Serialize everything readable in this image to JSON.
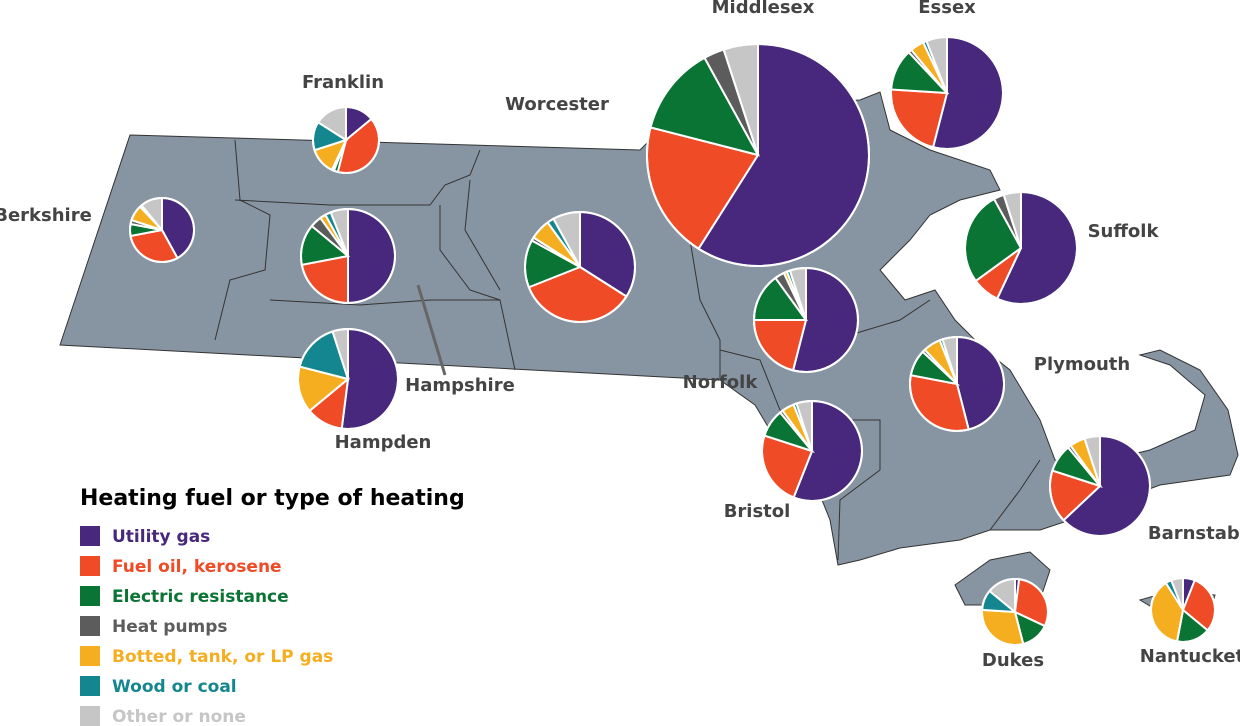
{
  "legend": {
    "title": "Heating fuel or type of heating",
    "items": [
      {
        "label": "Utility gas",
        "color": "#47287c"
      },
      {
        "label": "Fuel oil, kerosene",
        "color": "#ee4b26"
      },
      {
        "label": "Electric resistance",
        "color": "#0a7434"
      },
      {
        "label": "Heat pumps",
        "color": "#5c5c5c"
      },
      {
        "label": "Botted, tank, or LP gas",
        "color": "#f5ae1f"
      },
      {
        "label": "Wood or coal",
        "color": "#14868f"
      },
      {
        "label": "Other or none",
        "color": "#c6c6c6"
      }
    ]
  },
  "counties": [
    {
      "name": "Berkshire",
      "values": [
        42,
        30,
        6,
        2,
        8,
        1,
        11
      ]
    },
    {
      "name": "Franklin",
      "values": [
        14,
        40,
        2,
        1,
        13,
        14,
        16
      ]
    },
    {
      "name": "Hampshire",
      "values": [
        50,
        22,
        14,
        4,
        2,
        2,
        6
      ]
    },
    {
      "name": "Hampden",
      "values": [
        52,
        12,
        0,
        0,
        15,
        16,
        5
      ]
    },
    {
      "name": "Worcester",
      "values": [
        34,
        35,
        14,
        1,
        6,
        2,
        8
      ]
    },
    {
      "name": "Middlesex",
      "values": [
        59,
        20,
        13,
        3,
        0,
        0,
        5
      ]
    },
    {
      "name": "Essex",
      "values": [
        54,
        22,
        12,
        1,
        4,
        1,
        6
      ]
    },
    {
      "name": "Suffolk",
      "values": [
        57,
        8,
        27,
        3,
        0,
        0,
        5
      ]
    },
    {
      "name": "Norfolk",
      "values": [
        54,
        21,
        15,
        3,
        1,
        1,
        5
      ]
    },
    {
      "name": "Plymouth",
      "values": [
        46,
        32,
        9,
        1,
        6,
        1,
        5
      ]
    },
    {
      "name": "Bristol",
      "values": [
        56,
        24,
        9,
        1,
        4,
        1,
        5
      ]
    },
    {
      "name": "Barnstable",
      "values": [
        63,
        17,
        9,
        1,
        5,
        0,
        5
      ]
    },
    {
      "name": "Dukes",
      "values": [
        2,
        30,
        14,
        0,
        30,
        10,
        14
      ]
    },
    {
      "name": "Nantucket",
      "values": [
        6,
        30,
        17,
        0,
        38,
        3,
        6
      ]
    }
  ]
}
